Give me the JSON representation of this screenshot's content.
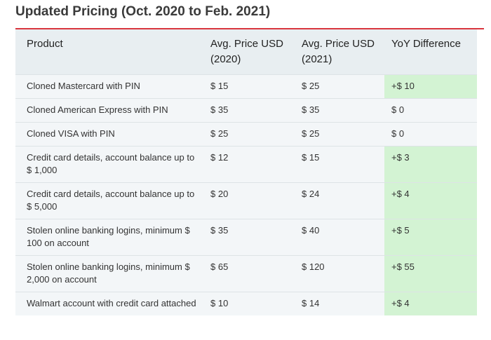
{
  "title": "Updated Pricing (Oct. 2020 to Feb. 2021)",
  "table": {
    "headers": [
      "Product",
      "Avg. Price USD (2020)",
      "Avg. Price USD (2021)",
      "YoY Difference"
    ],
    "highlight_color": "#d3f3d3",
    "rows": [
      {
        "cells": [
          "Cloned Mastercard with PIN",
          "$ 15",
          "$ 25",
          "+$ 10"
        ],
        "highlight": true
      },
      {
        "cells": [
          "Cloned American Express with PIN",
          "$ 35",
          "$ 35",
          "$ 0"
        ],
        "highlight": false
      },
      {
        "cells": [
          "Cloned VISA with PIN",
          "$ 25",
          "$ 25",
          "$ 0"
        ],
        "highlight": false
      },
      {
        "cells": [
          "Credit card details, account balance up to $ 1,000",
          "$ 12",
          "$ 15",
          "+$ 3"
        ],
        "highlight": true
      },
      {
        "cells": [
          "Credit card details, account balance up to $ 5,000",
          "$ 20",
          "$ 24",
          "+$ 4"
        ],
        "highlight": true
      },
      {
        "cells": [
          "Stolen online banking logins, minimum $ 100 on account",
          "$ 35",
          "$ 40",
          "+$ 5"
        ],
        "highlight": true
      },
      {
        "cells": [
          "Stolen online banking logins, minimum $ 2,000 on account",
          "$ 65",
          "$ 120",
          "+$ 55"
        ],
        "highlight": true
      },
      {
        "cells": [
          "Walmart account with credit card attached",
          "$ 10",
          "$ 14",
          "+$ 4"
        ],
        "highlight": true
      }
    ]
  }
}
